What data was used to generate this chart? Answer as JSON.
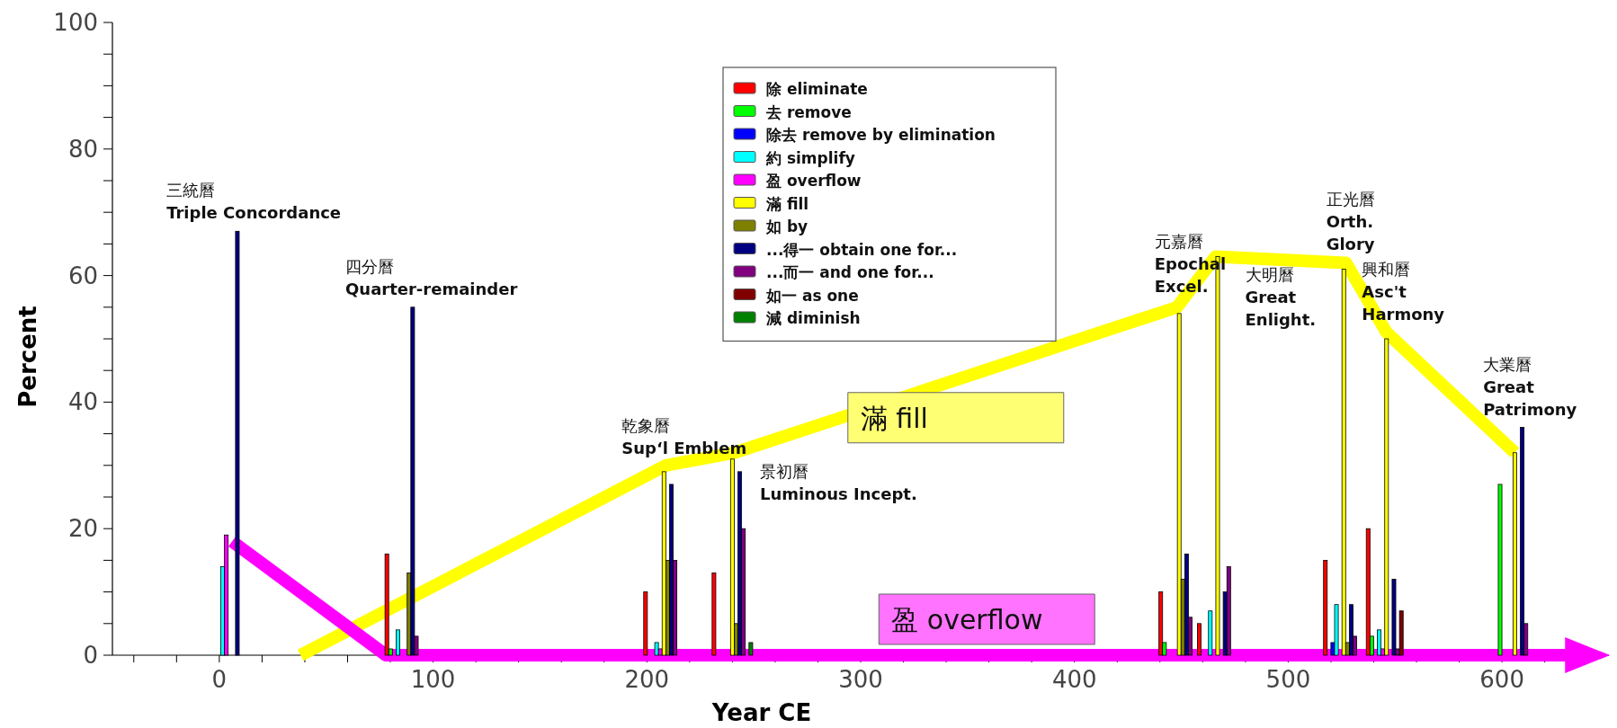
{
  "chart_data": {
    "type": "bar",
    "xlabel": "Year CE",
    "ylabel": "Percent",
    "legend": "top",
    "x": [
      5,
      87,
      208,
      240,
      449,
      467,
      526,
      546,
      606
    ],
    "xlim": [
      -50,
      650
    ],
    "ylim": [
      0,
      100
    ],
    "xticks": [
      {
        "value": -40,
        "label": null
      },
      {
        "value": -20,
        "label": null
      },
      0,
      {
        "value": 20,
        "label": null
      },
      {
        "value": 40,
        "label": null
      },
      {
        "value": 60,
        "label": null
      },
      {
        "value": 80,
        "label": null
      },
      100,
      {
        "value": 120,
        "label": null
      },
      {
        "value": 140,
        "label": null
      },
      {
        "value": 160,
        "label": null
      },
      {
        "value": 180,
        "label": null
      },
      200,
      {
        "value": 220,
        "label": null
      },
      {
        "value": 240,
        "label": null
      },
      {
        "value": 260,
        "label": null
      },
      {
        "value": 280,
        "label": null
      },
      300,
      {
        "value": 320,
        "label": null
      },
      {
        "value": 340,
        "label": null
      },
      {
        "value": 360,
        "label": null
      },
      {
        "value": 380,
        "label": null
      },
      400,
      {
        "value": 420,
        "label": null
      },
      {
        "value": 440,
        "label": null
      },
      {
        "value": 460,
        "label": null
      },
      {
        "value": 480,
        "label": null
      },
      500,
      {
        "value": 520,
        "label": null
      },
      {
        "value": 540,
        "label": null
      },
      {
        "value": 560,
        "label": null
      },
      {
        "value": 580,
        "label": null
      },
      600,
      {
        "value": 620,
        "label": null
      },
      {
        "value": 640,
        "label": null
      }
    ],
    "yticks": [
      0,
      {
        "value": 5,
        "label": null
      },
      {
        "value": 10,
        "label": null
      },
      {
        "value": 15,
        "label": null
      },
      20,
      {
        "value": 25,
        "label": null
      },
      {
        "value": 30,
        "label": null
      },
      {
        "value": 35,
        "label": null
      },
      40,
      {
        "value": 45,
        "label": null
      },
      {
        "value": 50,
        "label": null
      },
      {
        "value": 55,
        "label": null
      },
      60,
      {
        "value": 65,
        "label": null
      },
      {
        "value": 70,
        "label": null
      },
      {
        "value": 75,
        "label": null
      },
      80,
      {
        "value": 85,
        "label": null
      },
      {
        "value": 90,
        "label": null
      },
      {
        "value": 95,
        "label": null
      },
      100
    ],
    "series": [
      {
        "name": "除 eliminate",
        "color": "#ff0000",
        "values": [
          0,
          16,
          10,
          13,
          10,
          5,
          15,
          20,
          0
        ]
      },
      {
        "name": "去 remove",
        "color": "#00ff00",
        "values": [
          0,
          1,
          0,
          0,
          2,
          0,
          0,
          3,
          27
        ]
      },
      {
        "name": "除去 remove by elimination",
        "color": "#0000ff",
        "values": [
          0,
          0,
          0,
          0,
          0,
          0,
          2,
          0,
          0
        ]
      },
      {
        "name": "約 simplify",
        "color": "#00ffff",
        "values": [
          14,
          4,
          2,
          0,
          0,
          7,
          8,
          4,
          0
        ]
      },
      {
        "name": "盈 overflow",
        "color": "#ff00ff",
        "values": [
          19,
          0,
          1,
          0,
          0,
          0,
          0,
          1,
          0
        ]
      },
      {
        "name": "滿 fill",
        "color": "#ffff00",
        "values": [
          0,
          0,
          29,
          31,
          54,
          63,
          61,
          50,
          32
        ]
      },
      {
        "name": "如 by",
        "color": "#808000",
        "values": [
          0,
          13,
          15,
          5,
          12,
          0,
          2,
          0,
          0
        ]
      },
      {
        "name": "...得一 obtain one for...",
        "color": "#000080",
        "values": [
          67,
          55,
          27,
          29,
          16,
          10,
          8,
          12,
          36
        ]
      },
      {
        "name": "...而一 and one for...",
        "color": "#800080",
        "values": [
          0,
          3,
          15,
          20,
          6,
          14,
          3,
          1,
          5
        ]
      },
      {
        "name": "如一 as one",
        "color": "#800000",
        "values": [
          0,
          0,
          0,
          0,
          0,
          0,
          0,
          7,
          0
        ]
      },
      {
        "name": "減 diminish",
        "color": "#008000",
        "values": [
          0,
          0,
          0,
          2,
          0,
          0,
          0,
          0,
          0
        ]
      },
      {
        "name": "滿 fill",
        "type": "line",
        "color": "#ffff00",
        "x": [
          38,
          209,
          241,
          448,
          466,
          527,
          546,
          606
        ],
        "values": [
          0,
          30,
          32,
          55,
          63,
          62,
          51,
          32
        ]
      },
      {
        "name": "盈 overflow",
        "type": "line",
        "color": "#ff00ff",
        "x": [
          6,
          78,
          640
        ],
        "values": [
          18,
          0,
          0
        ]
      }
    ],
    "annotations": [
      "三統曆\nTriple Concordance",
      "四分曆\nQuarter-remainder",
      "乾象曆\nSup‘l Emblem",
      "景初曆\nLuminous Incept.",
      "元嘉曆\nEpochal\nExcel.",
      "大明曆\nGreat\nEnlight.",
      "正光曆\nOrth.\nGlory",
      "興和曆\nAsc't\nHarmony",
      "大業曆\nGreat\nPatrimony"
    ]
  }
}
